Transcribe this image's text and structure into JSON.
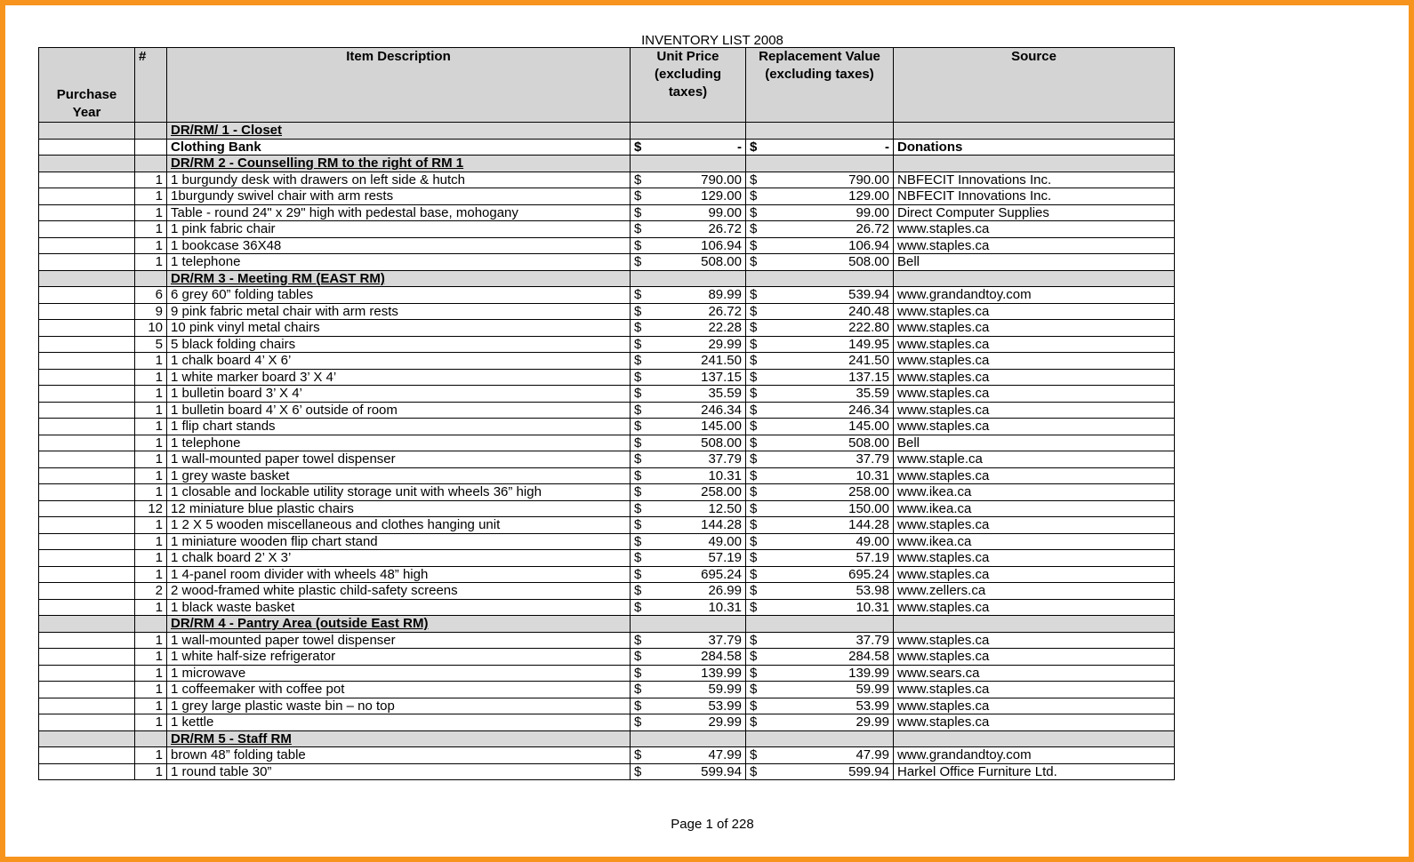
{
  "title": "INVENTORY LIST 2008",
  "header": {
    "purchase_year": "Purchase Year",
    "number": "#",
    "description": "Item Description",
    "unit_price": "Unit Price (excluding taxes)",
    "replacement_value": "Replacement Value (excluding taxes)",
    "source": "Source"
  },
  "currency": "$",
  "sections": [
    {
      "title": "DR/RM/ 1 - Closet",
      "items": [
        {
          "description": "Clothing Bank",
          "unit_price": "-",
          "replacement_value": "-",
          "source": "Donations"
        }
      ]
    },
    {
      "title": "DR/RM 2 - Counselling RM to the right of RM 1",
      "items": [
        {
          "qty": 1,
          "description": "1 burgundy desk with drawers on left side & hutch",
          "unit_price": "790.00",
          "replacement_value": "790.00",
          "source": "NBFECIT Innovations Inc."
        },
        {
          "qty": 1,
          "description": "1burgundy swivel chair with arm rests",
          "unit_price": "129.00",
          "replacement_value": "129.00",
          "source": "NBFECIT Innovations Inc."
        },
        {
          "qty": 1,
          "description": "Table - round 24\" x 29\" high with pedestal base, mohogany",
          "unit_price": "99.00",
          "replacement_value": "99.00",
          "source": "Direct Computer Supplies"
        },
        {
          "qty": 1,
          "description": "1 pink fabric chair",
          "unit_price": "26.72",
          "replacement_value": "26.72",
          "source": "www.staples.ca"
        },
        {
          "qty": 1,
          "description": "1 bookcase 36X48",
          "unit_price": "106.94",
          "replacement_value": "106.94",
          "source": "www.staples.ca"
        },
        {
          "qty": 1,
          "description": "1 telephone",
          "unit_price": "508.00",
          "replacement_value": "508.00",
          "source": "Bell"
        }
      ]
    },
    {
      "title": "DR/RM 3 - Meeting RM (EAST RM)",
      "items": [
        {
          "qty": 6,
          "description": "6 grey 60” folding tables",
          "unit_price": "89.99",
          "replacement_value": "539.94",
          "source": "www.grandandtoy.com"
        },
        {
          "qty": 9,
          "description": "9 pink fabric metal chair with arm rests",
          "unit_price": "26.72",
          "replacement_value": "240.48",
          "source": "www.staples.ca"
        },
        {
          "qty": 10,
          "description": "10 pink vinyl metal chairs",
          "unit_price": "22.28",
          "replacement_value": "222.80",
          "source": "www.staples.ca"
        },
        {
          "qty": 5,
          "description": "5 black folding chairs",
          "unit_price": "29.99",
          "replacement_value": "149.95",
          "source": "www.staples.ca"
        },
        {
          "qty": 1,
          "description": "1 chalk board 4’ X 6’",
          "unit_price": "241.50",
          "replacement_value": "241.50",
          "source": "www.staples.ca"
        },
        {
          "qty": 1,
          "description": "1 white marker board 3’ X 4’",
          "unit_price": "137.15",
          "replacement_value": "137.15",
          "source": "www.staples.ca"
        },
        {
          "qty": 1,
          "description": "1 bulletin board 3’ X 4’",
          "unit_price": "35.59",
          "replacement_value": "35.59",
          "source": "www.staples.ca"
        },
        {
          "qty": 1,
          "description": "1 bulletin board 4’ X 6’ outside of room",
          "unit_price": "246.34",
          "replacement_value": "246.34",
          "source": "www.staples.ca"
        },
        {
          "qty": 1,
          "description": "1 flip chart stands",
          "unit_price": "145.00",
          "replacement_value": "145.00",
          "source": "www.staples.ca"
        },
        {
          "qty": 1,
          "description": "1 telephone",
          "unit_price": "508.00",
          "replacement_value": "508.00",
          "source": "Bell"
        },
        {
          "qty": 1,
          "description": "1 wall-mounted paper towel dispenser",
          "unit_price": "37.79",
          "replacement_value": "37.79",
          "source": "www.staple.ca"
        },
        {
          "qty": 1,
          "description": "1 grey waste basket",
          "unit_price": "10.31",
          "replacement_value": "10.31",
          "source": "www.staples.ca"
        },
        {
          "qty": 1,
          "description": "1 closable and lockable utility storage unit with wheels 36” high",
          "unit_price": "258.00",
          "replacement_value": "258.00",
          "source": "www.ikea.ca"
        },
        {
          "qty": 12,
          "description": "12 miniature blue plastic chairs",
          "unit_price": "12.50",
          "replacement_value": "150.00",
          "source": "www.ikea.ca"
        },
        {
          "qty": 1,
          "description": "1 2 X 5 wooden miscellaneous and clothes hanging unit",
          "unit_price": "144.28",
          "replacement_value": "144.28",
          "source": "www.staples.ca"
        },
        {
          "qty": 1,
          "description": "1 miniature wooden flip chart stand",
          "unit_price": "49.00",
          "replacement_value": "49.00",
          "source": "www.ikea.ca"
        },
        {
          "qty": 1,
          "description": "1 chalk board 2’ X 3’",
          "unit_price": "57.19",
          "replacement_value": "57.19",
          "source": "www.staples.ca"
        },
        {
          "qty": 1,
          "description": "1 4-panel room divider with wheels 48” high",
          "unit_price": "695.24",
          "replacement_value": "695.24",
          "source": "www.staples.ca"
        },
        {
          "qty": 2,
          "description": "2 wood-framed white plastic child-safety screens",
          "unit_price": "26.99",
          "replacement_value": "53.98",
          "source": "www.zellers.ca"
        },
        {
          "qty": 1,
          "description": "1 black waste basket",
          "unit_price": "10.31",
          "replacement_value": "10.31",
          "source": "www.staples.ca"
        }
      ]
    },
    {
      "title": "DR/RM 4 - Pantry Area (outside East RM)",
      "items": [
        {
          "qty": 1,
          "description": "1 wall-mounted paper towel dispenser",
          "unit_price": "37.79",
          "replacement_value": "37.79",
          "source": "www.staples.ca"
        },
        {
          "qty": 1,
          "description": "1 white half-size refrigerator",
          "unit_price": "284.58",
          "replacement_value": "284.58",
          "source": "www.staples.ca"
        },
        {
          "qty": 1,
          "description": "1 microwave",
          "unit_price": "139.99",
          "replacement_value": "139.99",
          "source": "www.sears.ca"
        },
        {
          "qty": 1,
          "description": "1 coffeemaker with coffee pot",
          "unit_price": "59.99",
          "replacement_value": "59.99",
          "source": "www.staples.ca"
        },
        {
          "qty": 1,
          "description": "1 grey large plastic waste bin – no top",
          "unit_price": "53.99",
          "replacement_value": "53.99",
          "source": "www.staples.ca"
        },
        {
          "qty": 1,
          "description": "1 kettle",
          "unit_price": "29.99",
          "replacement_value": "29.99",
          "source": "www.staples.ca"
        }
      ]
    },
    {
      "title": "DR/RM 5 - Staff RM",
      "items": [
        {
          "qty": 1,
          "description": "brown 48” folding table",
          "unit_price": "47.99",
          "replacement_value": "47.99",
          "source": "www.grandandtoy.com"
        },
        {
          "qty": 1,
          "description": "1 round table 30”",
          "unit_price": "599.94",
          "replacement_value": "599.94",
          "source": "Harkel Office Furniture Ltd."
        }
      ]
    }
  ],
  "footer": "Page 1 of 228"
}
